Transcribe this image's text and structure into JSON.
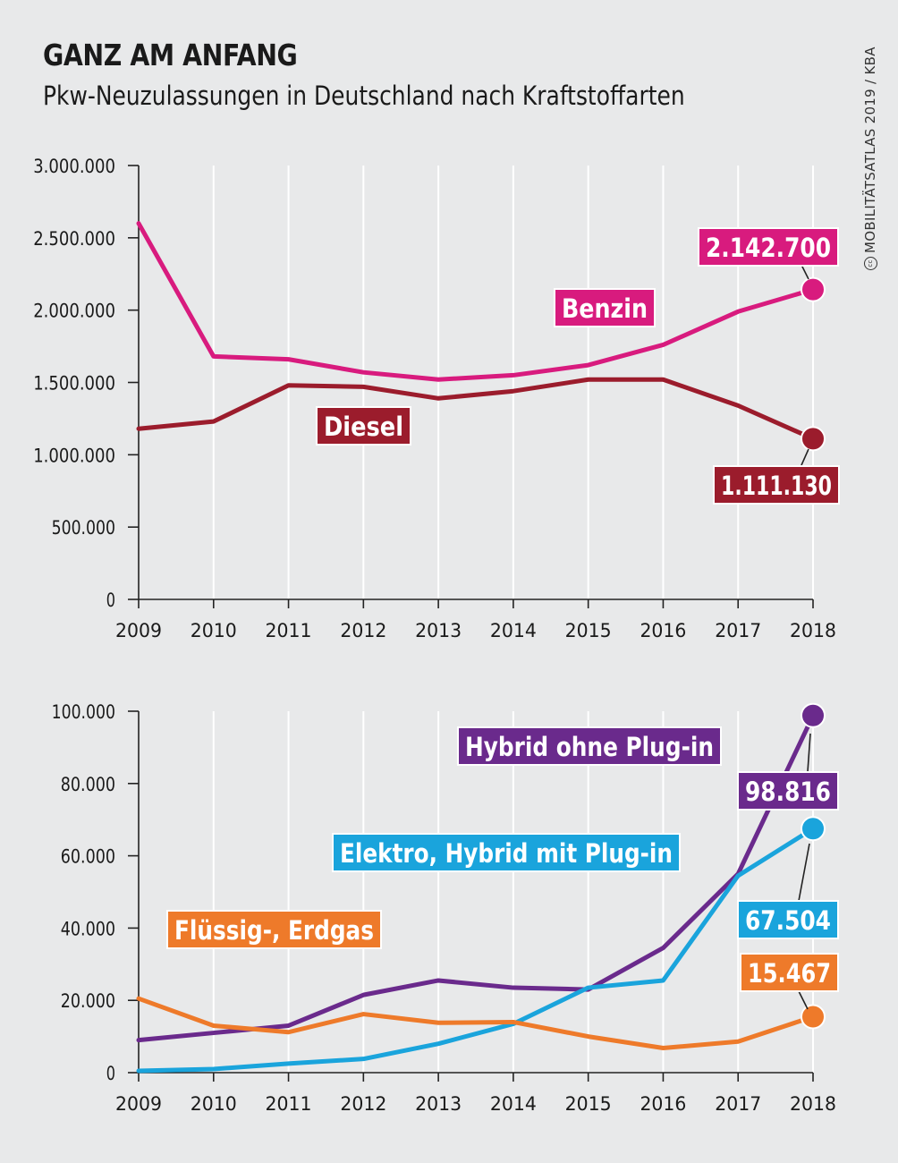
{
  "title": "GANZ AM ANFANG",
  "subtitle": "Pkw-Neuzulassungen in Deutschland nach Kraftstoffarten",
  "credit_symbol": "cc",
  "credit": "MOBILITÄTSATLAS 2019 / KBA",
  "chart_data": [
    {
      "type": "line",
      "x": [
        2009,
        2010,
        2011,
        2012,
        2013,
        2014,
        2015,
        2016,
        2017,
        2018
      ],
      "ylim": [
        0,
        3000000
      ],
      "yticks": [
        0,
        500000,
        1000000,
        1500000,
        2000000,
        2500000,
        3000000
      ],
      "ytick_labels": [
        "0",
        "500.000",
        "1.000.000",
        "1.500.000",
        "2.000.000",
        "2.500.000",
        "3.000.000"
      ],
      "grid": "vertical",
      "series": [
        {
          "name": "Benzin",
          "color": "#d81b7e",
          "values": [
            2600000,
            1680000,
            1660000,
            1570000,
            1520000,
            1550000,
            1620000,
            1760000,
            1990000,
            2142700
          ],
          "end_label": "2.142.700"
        },
        {
          "name": "Diesel",
          "color": "#9b1c2c",
          "values": [
            1180000,
            1230000,
            1480000,
            1470000,
            1390000,
            1440000,
            1520000,
            1520000,
            1340000,
            1111130
          ],
          "end_label": "1.111.130"
        }
      ]
    },
    {
      "type": "line",
      "x": [
        2009,
        2010,
        2011,
        2012,
        2013,
        2014,
        2015,
        2016,
        2017,
        2018
      ],
      "ylim": [
        0,
        100000
      ],
      "yticks": [
        0,
        20000,
        40000,
        60000,
        80000,
        100000
      ],
      "ytick_labels": [
        "0",
        "20.000",
        "40.000",
        "60.000",
        "80.000",
        "100.000"
      ],
      "grid": "vertical",
      "series": [
        {
          "name": "Hybrid ohne Plug-in",
          "color": "#6a2a8c",
          "values": [
            9000,
            11000,
            13000,
            21500,
            25500,
            23500,
            23000,
            34500,
            55000,
            98816
          ],
          "end_label": "98.816"
        },
        {
          "name": "Elektro, Hybrid mit Plug-in",
          "color": "#1aa4dc",
          "values": [
            500,
            1000,
            2500,
            3800,
            8000,
            13500,
            23500,
            25500,
            54500,
            67504
          ],
          "end_label": "67.504"
        },
        {
          "name": "Flüssig-, Erdgas",
          "color": "#ee7a2a",
          "values": [
            20500,
            13000,
            11200,
            16200,
            13800,
            14000,
            10000,
            6800,
            8600,
            15467
          ],
          "end_label": "15.467"
        }
      ]
    }
  ]
}
